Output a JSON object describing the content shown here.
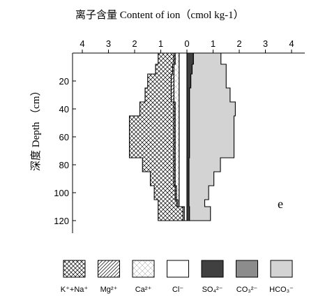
{
  "chart_data": {
    "type": "area",
    "title": "离子含量 Content of ion（cmol kg-1）",
    "ylabel": "深度 Depth （cm）",
    "annotation": "e",
    "x_ticks": [
      "4",
      "3",
      "2",
      "1",
      "0",
      "1",
      "2",
      "3",
      "4"
    ],
    "x_tick_values": [
      -4,
      -3,
      -2,
      -1,
      0,
      1,
      2,
      3,
      4
    ],
    "y_ticks": [
      20,
      40,
      60,
      80,
      100,
      120
    ],
    "xlim": [
      -4.2,
      4.5
    ],
    "ylim": [
      0,
      120
    ],
    "depth_bounds": [
      0,
      8,
      15,
      25,
      35,
      45,
      75,
      85,
      95,
      105,
      110,
      120
    ],
    "left_series": [
      {
        "name": "Cl-",
        "widths": [
          0.3,
          0.3,
          0.3,
          0.3,
          0.3,
          0.3,
          0.3,
          0.3,
          0.3,
          0.3,
          0.1
        ]
      },
      {
        "name": "Ca2+",
        "widths": [
          0.15,
          0.2,
          0.2,
          0.2,
          0.15,
          0.15,
          0.15,
          0.15,
          0.1,
          0.05,
          0.05
        ]
      },
      {
        "name": "Mg2+",
        "widths": [
          0.05,
          0.05,
          0.1,
          0.1,
          0.05,
          0.05,
          0.05,
          0.05,
          0.05,
          0.05,
          0.0
        ]
      },
      {
        "name": "K++Na+",
        "widths": [
          0.6,
          0.65,
          0.9,
          1.0,
          1.3,
          1.7,
          1.2,
          0.9,
          0.8,
          0.7,
          0.95
        ]
      }
    ],
    "right_series": [
      {
        "name": "SO42-",
        "widths": [
          0.25,
          0.2,
          0.15,
          0.1,
          0.1,
          0.1,
          0.08,
          0.08,
          0.08,
          0.08,
          0.1
        ]
      },
      {
        "name": "CO32-",
        "widths": [
          0.0,
          0.0,
          0.0,
          0.0,
          0.0,
          0.0,
          0.0,
          0.0,
          0.0,
          0.0,
          0.0
        ]
      },
      {
        "name": "HCO3-",
        "widths": [
          1.05,
          1.3,
          1.35,
          1.55,
          1.75,
          1.7,
          1.2,
          0.95,
          0.75,
          0.6,
          0.8
        ]
      }
    ],
    "legend": [
      {
        "key": "kna",
        "label": "K⁺+Na⁺"
      },
      {
        "key": "mg",
        "label": "Mg²⁺"
      },
      {
        "key": "ca",
        "label": "Ca²⁺"
      },
      {
        "key": "cl",
        "label": "Cl⁻"
      },
      {
        "key": "so4",
        "label": "SO₄²⁻"
      },
      {
        "key": "co3",
        "label": "CO₃²⁻"
      },
      {
        "key": "hco3",
        "label": "HCO₃⁻"
      }
    ],
    "colors": {
      "so4": "#404040",
      "co3": "#8c8c8c",
      "hco3": "#d3d3d3",
      "cl": "#ffffff",
      "line": "#000000"
    }
  }
}
